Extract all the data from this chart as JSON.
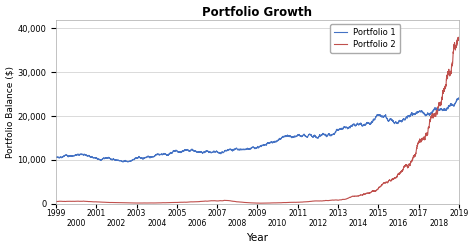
{
  "title": "Portfolio Growth",
  "xlabel": "Year",
  "ylabel": "Portfolio Balance ($)",
  "legend": [
    "Portfolio 1",
    "Portfolio 2"
  ],
  "line1_color": "#4472C4",
  "line2_color": "#C0504D",
  "background_color": "#FFFFFF",
  "ylim": [
    0,
    42000
  ],
  "yticks": [
    0,
    10000,
    20000,
    30000,
    40000
  ],
  "ytick_labels": [
    "0",
    "10,000",
    "20,000",
    "30,000",
    "40,000"
  ],
  "x_start_year": 1999,
  "x_end_year": 2019,
  "odd_year_ticks": [
    1999,
    2001,
    2003,
    2005,
    2007,
    2009,
    2011,
    2013,
    2015,
    2017,
    2019
  ],
  "even_year_ticks": [
    2000,
    2002,
    2004,
    2006,
    2008,
    2010,
    2012,
    2014,
    2016,
    2018
  ]
}
